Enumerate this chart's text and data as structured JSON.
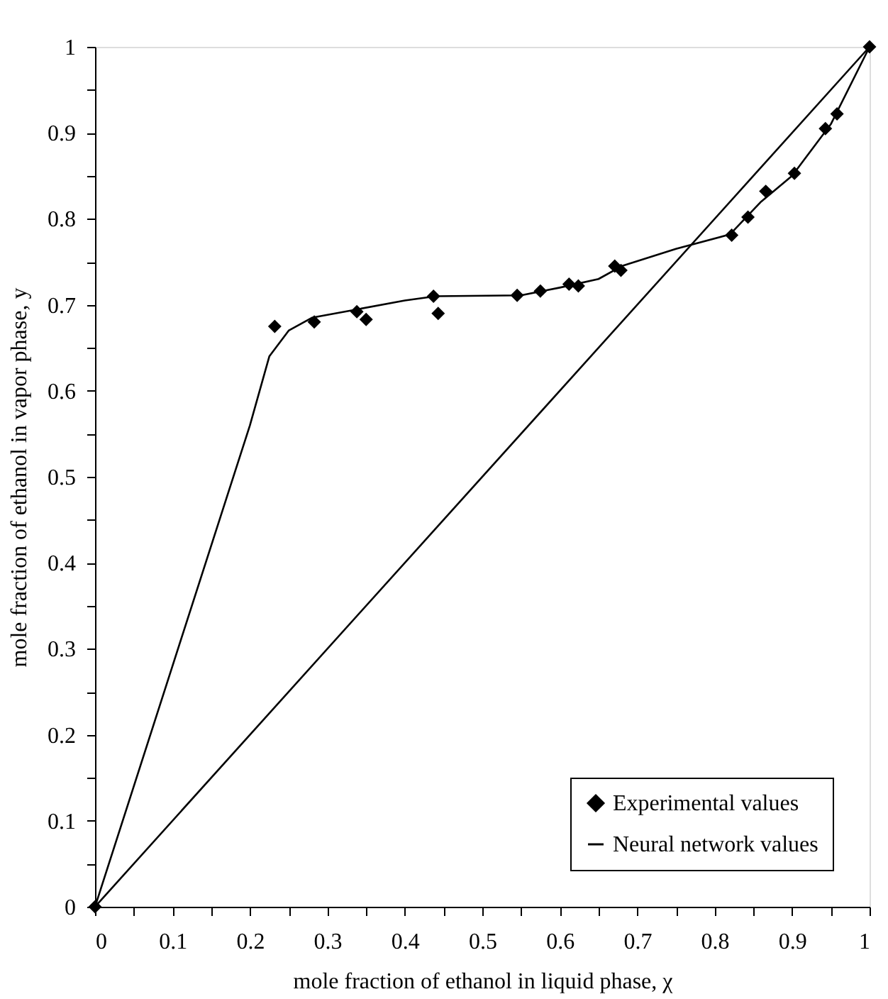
{
  "chart_data": {
    "type": "scatter",
    "xlabel": "mole fraction of ethanol in liquid phase, χ",
    "ylabel": "mole fraction of ethanol in vapor phase, y",
    "xlim": [
      0,
      1
    ],
    "ylim": [
      0,
      1
    ],
    "xticks": [
      0,
      {
        "value": 0.05,
        "label": null
      },
      0.1,
      {
        "value": 0.15,
        "label": null
      },
      0.2,
      {
        "value": 0.25,
        "label": null
      },
      0.3,
      {
        "value": 0.35,
        "label": null
      },
      0.4,
      {
        "value": 0.45,
        "label": null
      },
      0.5,
      {
        "value": 0.55,
        "label": null
      },
      0.6,
      {
        "value": 0.65,
        "label": null
      },
      0.7,
      {
        "value": 0.75,
        "label": null
      },
      0.8,
      {
        "value": 0.85,
        "label": null
      },
      0.9,
      {
        "value": 0.95,
        "label": null
      },
      1
    ],
    "yticks": [
      0,
      {
        "value": 0.05,
        "label": null
      },
      0.1,
      {
        "value": 0.15,
        "label": null
      },
      0.2,
      {
        "value": 0.25,
        "label": null
      },
      0.3,
      {
        "value": 0.35,
        "label": null
      },
      0.4,
      {
        "value": 0.45,
        "label": null
      },
      0.5,
      {
        "value": 0.55,
        "label": null
      },
      0.6,
      {
        "value": 0.65,
        "label": null
      },
      0.7,
      {
        "value": 0.75,
        "label": null
      },
      0.8,
      {
        "value": 0.85,
        "label": null
      },
      0.9,
      {
        "value": 0.95,
        "label": null
      },
      1
    ],
    "legend": "bottom right",
    "grid": false,
    "series": [
      {
        "name": "Experimental values",
        "marker": "diamond",
        "color": "#000000",
        "x": [
          0,
          0.232,
          0.283,
          0.338,
          0.35,
          0.437,
          0.443,
          0.545,
          0.575,
          0.612,
          0.624,
          0.671,
          0.679,
          0.822,
          0.843,
          0.866,
          0.903,
          0.943,
          0.958,
          1
        ],
        "values": [
          0,
          0.675,
          0.68,
          0.692,
          0.683,
          0.71,
          0.69,
          0.711,
          0.716,
          0.724,
          0.722,
          0.745,
          0.74,
          0.781,
          0.802,
          0.832,
          0.853,
          0.905,
          0.922,
          1
        ]
      },
      {
        "name": "Neural network values",
        "type": "line",
        "marker": "none",
        "line_style": "solid",
        "color": "#000000",
        "x": [
          0,
          0.1,
          0.2,
          0.225,
          0.25,
          0.28,
          0.34,
          0.4,
          0.44,
          0.55,
          0.6,
          0.65,
          0.68,
          0.75,
          0.82,
          0.86,
          0.9,
          0.95,
          1
        ],
        "values": [
          0,
          0.28,
          0.56,
          0.64,
          0.67,
          0.685,
          0.695,
          0.705,
          0.71,
          0.711,
          0.72,
          0.73,
          0.745,
          0.765,
          0.782,
          0.82,
          0.85,
          0.91,
          1
        ]
      },
      {
        "type": "line",
        "marker": "none",
        "line_style": "solid",
        "color": "#000000",
        "x": [
          0,
          1
        ],
        "values": [
          0,
          1
        ]
      }
    ]
  }
}
